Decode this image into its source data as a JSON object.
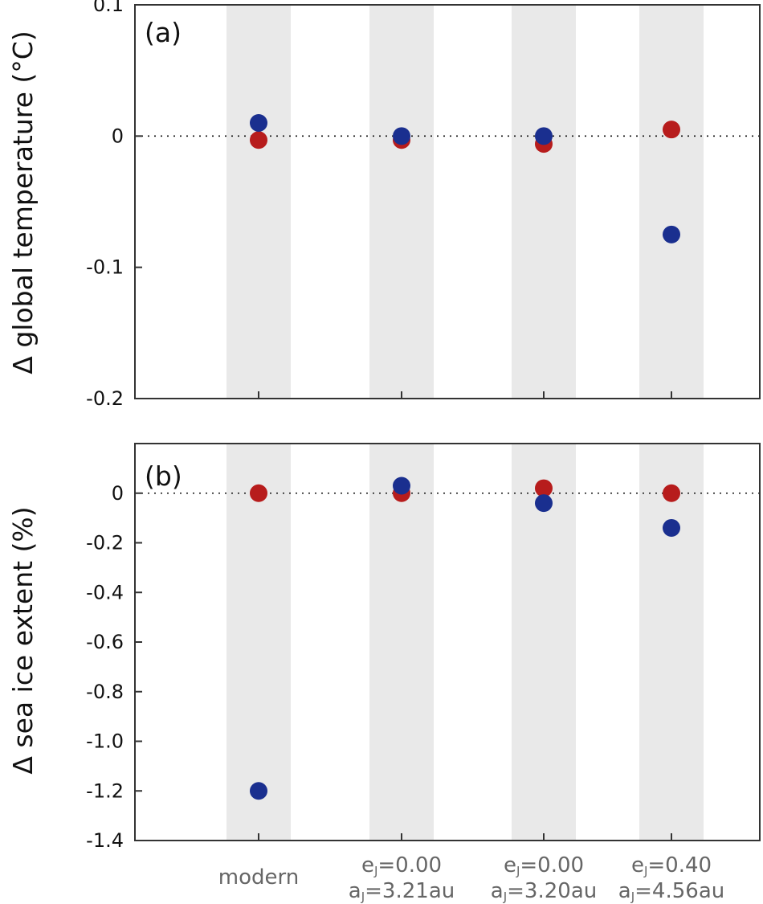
{
  "chart_data": [
    {
      "type": "scatter",
      "panel_label": "(a)",
      "ylabel": "Δ global temperature (°C)",
      "categories": [
        "modern",
        "eJ=0.00 aJ=3.21au",
        "eJ=0.00 aJ=3.20au",
        "eJ=0.40 aJ=4.56au"
      ],
      "ylim": [
        -0.2,
        0.1
      ],
      "yticks": [
        0.1,
        0,
        -0.1,
        -0.2
      ],
      "ytick_labels": [
        "0.1",
        "0",
        "-0.1",
        "-0.2"
      ],
      "reference_line": 0,
      "series": [
        {
          "name": "red",
          "color": "#b71c1c",
          "values": [
            -0.003,
            -0.003,
            -0.006,
            0.005
          ]
        },
        {
          "name": "blue",
          "color": "#1a2f8f",
          "values": [
            0.01,
            0.0,
            0.0,
            -0.075
          ]
        }
      ]
    },
    {
      "type": "scatter",
      "panel_label": "(b)",
      "ylabel": "Δ sea ice extent (%)",
      "categories": [
        "modern",
        "eJ=0.00 aJ=3.21au",
        "eJ=0.00 aJ=3.20au",
        "eJ=0.40 aJ=4.56au"
      ],
      "ylim": [
        -1.4,
        0.2
      ],
      "yticks": [
        0,
        -0.2,
        -0.4,
        -0.6,
        -0.8,
        -1.0,
        -1.2,
        -1.4
      ],
      "ytick_labels": [
        "0",
        "-0.2",
        "-0.4",
        "-0.6",
        "-0.8",
        "-1.0",
        "-1.2",
        "-1.4"
      ],
      "reference_line": 0,
      "series": [
        {
          "name": "red",
          "color": "#b71c1c",
          "values": [
            0.0,
            0.0,
            0.02,
            0.0
          ]
        },
        {
          "name": "blue",
          "color": "#1a2f8f",
          "values": [
            -1.2,
            0.03,
            -0.04,
            -0.14
          ]
        }
      ]
    }
  ],
  "x_labels": [
    {
      "line1": "modern"
    },
    {
      "e_letter": "e",
      "e_sub": "J",
      "e_value": "=0.00",
      "a_letter": "a",
      "a_sub": "J",
      "a_value": "=3.21au"
    },
    {
      "e_letter": "e",
      "e_sub": "J",
      "e_value": "=0.00",
      "a_letter": "a",
      "a_sub": "J",
      "a_value": "=3.20au"
    },
    {
      "e_letter": "e",
      "e_sub": "J",
      "e_value": "=0.40",
      "a_letter": "a",
      "a_sub": "J",
      "a_value": "=4.56au"
    }
  ],
  "colors": {
    "band": "#e9e9e9",
    "axis": "#333333",
    "tick_text": "#111111",
    "category_text": "#666666"
  }
}
